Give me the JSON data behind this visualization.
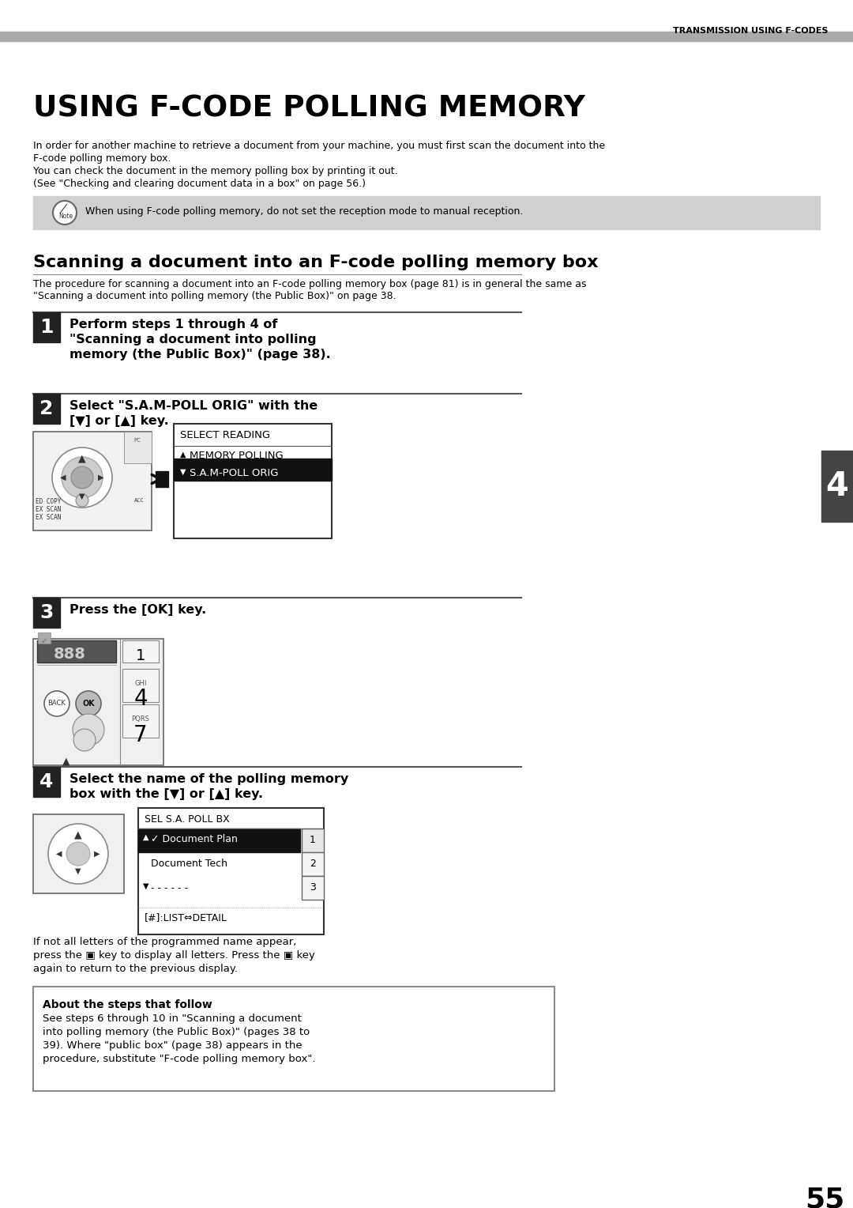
{
  "page_title": "USING F-CODE POLLING MEMORY",
  "header_right": "TRANSMISSION USING F-CODES",
  "page_number": "55",
  "intro_text": [
    "In order for another machine to retrieve a document from your machine, you must first scan the document into the",
    "F-code polling memory box.",
    "You can check the document in the memory polling box by printing it out.",
    "(See \"Checking and clearing document data in a box\" on page 56.)"
  ],
  "note_text": "When using F-code polling memory, do not set the reception mode to manual reception.",
  "section_title": "Scanning a document into an F-code polling memory box",
  "section_intro": [
    "The procedure for scanning a document into an F-code polling memory box (page 81) is in general the same as",
    "\"Scanning a document into polling memory (the Public Box)\" on page 38."
  ],
  "steps": [
    {
      "number": "1",
      "text": "Perform steps 1 through 4 of\n\"Scanning a document into polling\nmemory (the Public Box)\" (page 38)."
    },
    {
      "number": "2",
      "text": "Select \"S.A.M-POLL ORIG\" with the\n[▼] or [▲] key."
    },
    {
      "number": "3",
      "text": "Press the [OK] key."
    },
    {
      "number": "4",
      "text": "Select the name of the polling memory\nbox with the [▼] or [▲] key."
    }
  ],
  "about_box_title": "About the steps that follow",
  "about_box_text": "See steps 6 through 10 in \"Scanning a document\ninto polling memory (the Public Box)\" (pages 38 to\n39). Where \"public box\" (page 38) appears in the\nprocedure, substitute \"F-code polling memory box\".",
  "followup_text": [
    "If not all letters of the programmed name appear,",
    "press the ▣ key to display all letters. Press the ▣ key",
    "again to return to the previous display."
  ],
  "tab_number": "4",
  "bg_color": "#ffffff",
  "step_num_bg": "#222222",
  "step_num_color": "#ffffff",
  "note_bg": "#d0d0d0",
  "display_selected_bg": "#111111",
  "tab_bg": "#444444",
  "tab_color": "#ffffff"
}
